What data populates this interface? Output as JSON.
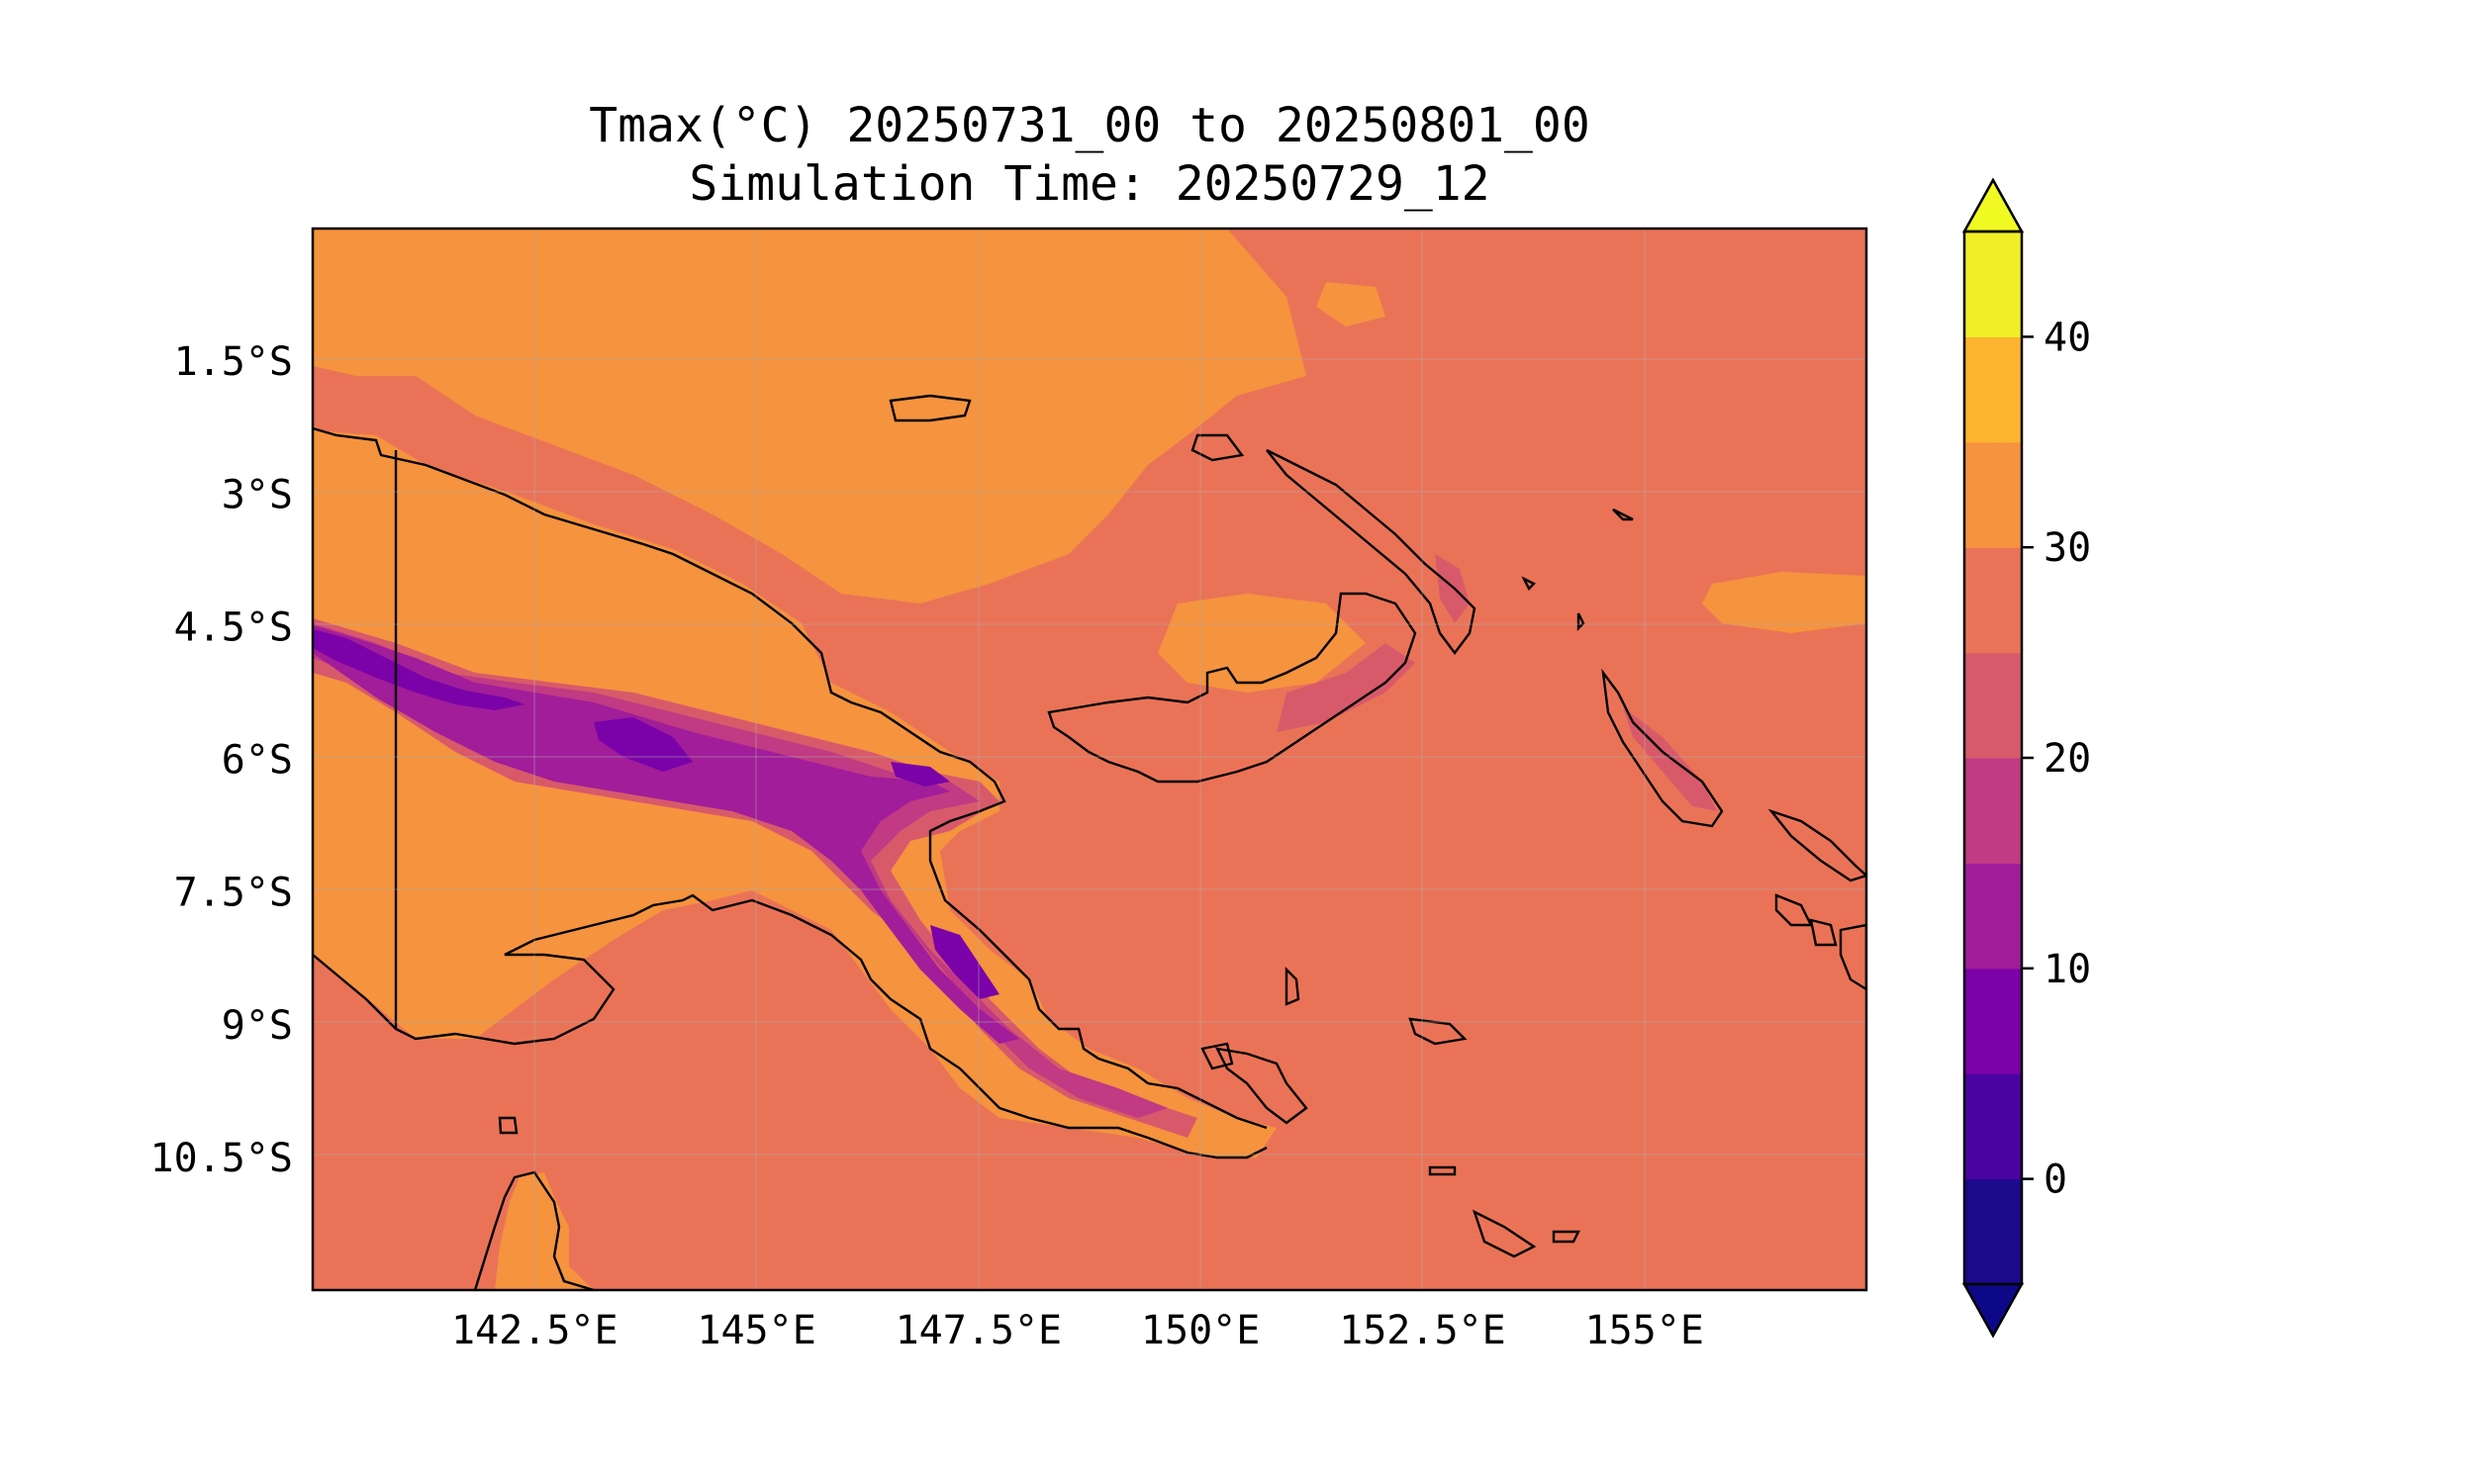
{
  "title": {
    "line1": "Tmax(°C) 20250731_00 to 20250801_00",
    "line2": "Simulation Time: 20250729_12"
  },
  "axes": {
    "lat_ticks": [
      "1.5°S",
      "3°S",
      "4.5°S",
      "6°S",
      "7.5°S",
      "9°S",
      "10.5°S"
    ],
    "lon_ticks": [
      "142.5°E",
      "145°E",
      "147.5°E",
      "150°E",
      "152.5°E",
      "155°E"
    ],
    "lat_range": [
      -12.0,
      0.0
    ],
    "lon_range": [
      140.0,
      157.5
    ]
  },
  "colorbar": {
    "ticks": [
      "0",
      "10",
      "20",
      "30",
      "40"
    ],
    "levels": [
      -5,
      0,
      5,
      10,
      15,
      20,
      25,
      30,
      35,
      40,
      45
    ],
    "colors": [
      "#1b0a8c",
      "#4a03a0",
      "#7a02a8",
      "#a11d9a",
      "#c13a83",
      "#d85a6a",
      "#ea7357",
      "#f5933e",
      "#fdb42f",
      "#f0ee26"
    ],
    "under_color": "#0d0887",
    "over_color": "#f0f921",
    "extend": "both"
  },
  "map": {
    "ocean_color": "#ea7357",
    "warm_land_color": "#f5933e",
    "cool_highland_colors": [
      "#d85a6a",
      "#c13a83",
      "#a11d9a",
      "#7a02a8"
    ],
    "coastline_color": "#000000"
  }
}
